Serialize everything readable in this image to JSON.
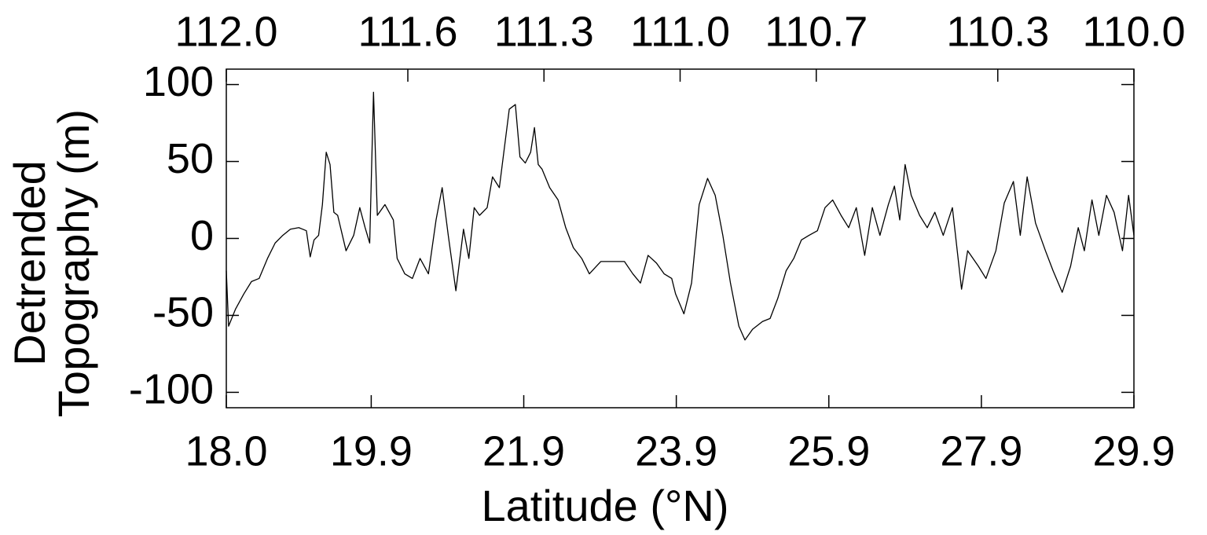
{
  "chart_data": {
    "type": "line",
    "xlabel": "Latitude (°N)",
    "ylabel": [
      "Detrended",
      "Topography (m)"
    ],
    "color": "#000000",
    "xlim": [
      18.0,
      29.9
    ],
    "ylim": [
      -110,
      110
    ],
    "xticks": [
      {
        "value": 18,
        "label": "18.0"
      },
      19.9,
      21.9,
      23.9,
      25.9,
      27.9,
      29.9
    ],
    "yticks": [
      -100,
      -50,
      0,
      50,
      100
    ],
    "x2lim": [
      112,
      110
    ],
    "x2ticks": [
      {
        "value": 112,
        "label": "112.0"
      },
      111.6,
      111.3,
      {
        "value": 111,
        "label": "111.0"
      },
      110.7,
      110.3,
      {
        "value": 110,
        "label": "110.0"
      }
    ],
    "x": [
      18.0,
      18.03,
      18.12,
      18.23,
      18.33,
      18.43,
      18.54,
      18.64,
      18.74,
      18.84,
      18.95,
      19.05,
      19.1,
      19.15,
      19.21,
      19.26,
      19.31,
      19.36,
      19.41,
      19.46,
      19.57,
      19.67,
      19.75,
      19.82,
      19.88,
      19.93,
      19.98,
      20.08,
      20.19,
      20.24,
      20.34,
      20.44,
      20.54,
      20.65,
      20.75,
      20.83,
      20.91,
      21.01,
      21.11,
      21.18,
      21.25,
      21.32,
      21.42,
      21.49,
      21.58,
      21.71,
      21.79,
      21.85,
      21.92,
      21.99,
      22.04,
      22.09,
      22.14,
      22.24,
      22.35,
      22.45,
      22.55,
      22.66,
      22.76,
      22.91,
      23.07,
      23.22,
      23.33,
      23.43,
      23.53,
      23.64,
      23.74,
      23.84,
      23.89,
      24.0,
      24.1,
      24.2,
      24.31,
      24.41,
      24.51,
      24.61,
      24.72,
      24.8,
      24.9,
      25.03,
      25.13,
      25.23,
      25.34,
      25.44,
      25.54,
      25.64,
      25.75,
      25.85,
      25.95,
      26.06,
      26.16,
      26.26,
      26.37,
      26.47,
      26.57,
      26.68,
      26.76,
      26.83,
      26.9,
      26.98,
      27.09,
      27.19,
      27.29,
      27.4,
      27.52,
      27.64,
      27.72,
      27.86,
      27.96,
      28.09,
      28.2,
      28.32,
      28.41,
      28.5,
      28.61,
      28.74,
      28.84,
      28.96,
      29.07,
      29.17,
      29.25,
      29.35,
      29.44,
      29.54,
      29.64,
      29.75,
      29.83,
      29.9
    ],
    "values": [
      -21,
      -57,
      -46,
      -36,
      -28,
      -26,
      -13,
      -3,
      2,
      6,
      7,
      5,
      -12,
      -1,
      2,
      22,
      56,
      48,
      17,
      15,
      -8,
      2,
      20,
      7,
      -3,
      95,
      15,
      22,
      12,
      -13,
      -23,
      -26,
      -13,
      -23,
      12,
      33,
      2,
      -34,
      6,
      -13,
      20,
      15,
      20,
      40,
      33,
      84,
      87,
      53,
      49,
      56,
      72,
      48,
      45,
      33,
      25,
      7,
      -6,
      -13,
      -23,
      -15,
      -15,
      -15,
      -23,
      -29,
      -11,
      -16,
      -23,
      -26,
      -36,
      -49,
      -29,
      22,
      39,
      28,
      2,
      -29,
      -57,
      -66,
      -59,
      -54,
      -52,
      -39,
      -21,
      -13,
      -1,
      2,
      5,
      20,
      25,
      15,
      7,
      20,
      -11,
      20,
      2,
      22,
      34,
      12,
      48,
      28,
      15,
      7,
      17,
      2,
      20,
      -33,
      -8,
      -18,
      -26,
      -8,
      23,
      37,
      2,
      40,
      10,
      -8,
      -21,
      -35,
      -18,
      7,
      -8,
      25,
      2,
      28,
      17,
      -8,
      28,
      2
    ]
  }
}
